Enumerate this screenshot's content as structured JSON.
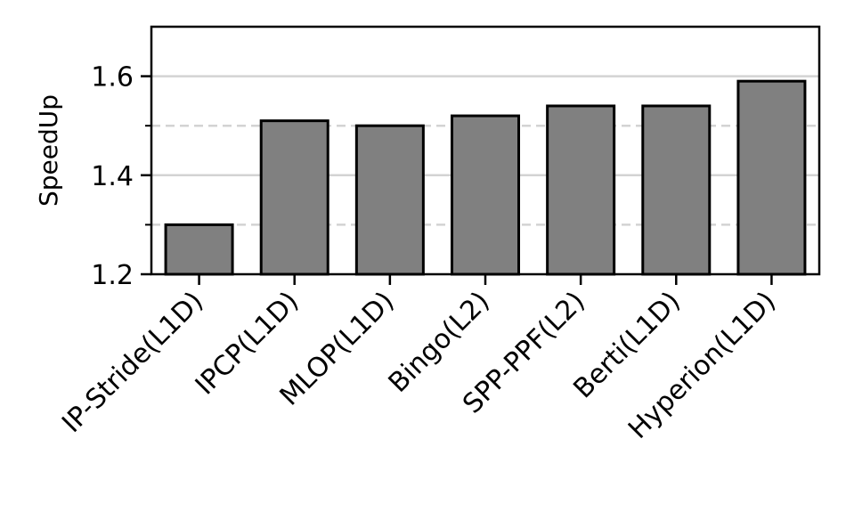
{
  "chart_data": {
    "type": "bar",
    "categories": [
      "IP-Stride(L1D)",
      "IPCP(L1D)",
      "MLOP(L1D)",
      "Bingo(L2)",
      "SPP-PPF(L2)",
      "Berti(L1D)",
      "Hyperion(L1D)"
    ],
    "values": [
      1.3,
      1.51,
      1.5,
      1.52,
      1.54,
      1.54,
      1.59
    ],
    "ylabel": "SpeedUp",
    "ylim": [
      1.2,
      1.7
    ],
    "yticks_major": [
      1.2,
      1.4,
      1.6
    ],
    "yticks_major_labels": [
      "1.2",
      "1.4",
      "1.6"
    ],
    "yticks_minor": [
      1.3,
      1.5
    ],
    "grid": "horizontal; solid at major ticks, dashed at minor ticks",
    "bar_color": "#808080",
    "bar_edge_color": "#000000",
    "grid_color": "#d3d3d3"
  }
}
